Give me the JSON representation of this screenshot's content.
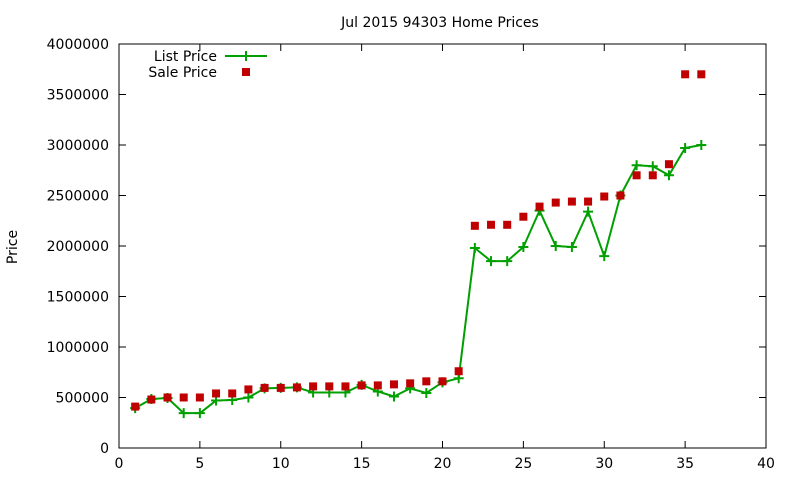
{
  "chart_data": {
    "type": "line",
    "title": "Jul 2015 94303 Home Prices",
    "xlabel": "",
    "ylabel": "Price",
    "xlim": [
      0,
      40
    ],
    "ylim": [
      0,
      4000000
    ],
    "xticks": [
      0,
      5,
      10,
      15,
      20,
      25,
      30,
      35,
      40
    ],
    "yticks": [
      0,
      500000,
      1000000,
      1500000,
      2000000,
      2500000,
      3000000,
      3500000,
      4000000
    ],
    "grid": false,
    "legend_position": "top-left",
    "series": [
      {
        "name": "List Price",
        "style": "linespoints",
        "marker": "plus",
        "color": "#00a000",
        "x": [
          1,
          2,
          3,
          4,
          5,
          6,
          7,
          8,
          9,
          10,
          11,
          12,
          13,
          14,
          15,
          16,
          17,
          18,
          19,
          20,
          21,
          22,
          23,
          24,
          25,
          26,
          27,
          28,
          29,
          30,
          31,
          32,
          33,
          34,
          35,
          36
        ],
        "y": [
          395000,
          485000,
          495000,
          345000,
          345000,
          470000,
          475000,
          500000,
          590000,
          595000,
          600000,
          550000,
          550000,
          550000,
          625000,
          560000,
          510000,
          590000,
          545000,
          650000,
          690000,
          1980000,
          1850000,
          1850000,
          1990000,
          2350000,
          2000000,
          1990000,
          2340000,
          1900000,
          2500000,
          2800000,
          2790000,
          2700000,
          2970000,
          3000000
        ]
      },
      {
        "name": "Sale Price",
        "style": "points",
        "marker": "square",
        "color": "#c00000",
        "x": [
          1,
          2,
          3,
          4,
          5,
          6,
          7,
          8,
          9,
          10,
          11,
          12,
          13,
          14,
          15,
          16,
          17,
          18,
          19,
          20,
          21,
          22,
          23,
          24,
          25,
          26,
          27,
          28,
          29,
          30,
          31,
          32,
          33,
          34,
          35,
          36
        ],
        "y": [
          410000,
          480000,
          500000,
          500000,
          500000,
          540000,
          540000,
          580000,
          595000,
          595000,
          600000,
          610000,
          610000,
          610000,
          620000,
          620000,
          630000,
          640000,
          660000,
          660000,
          760000,
          2200000,
          2210000,
          2210000,
          2290000,
          2390000,
          2430000,
          2440000,
          2440000,
          2490000,
          2500000,
          2700000,
          2700000,
          2810000,
          3700000,
          3700000
        ]
      }
    ]
  }
}
